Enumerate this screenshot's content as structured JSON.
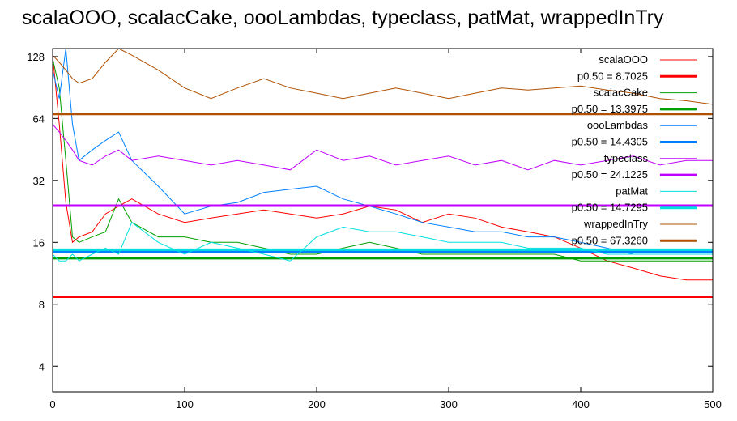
{
  "title": "scalaOOO, scalacCake, oooLambdas, typeclass, patMat, wrappedInTry",
  "chart_data": {
    "type": "line",
    "title": "scalaOOO, scalacCake, oooLambdas, typeclass, patMat, wrappedInTry",
    "xlabel": "",
    "ylabel": "",
    "xlim": [
      0,
      500
    ],
    "ylim": [
      3,
      140
    ],
    "yscale": "log2",
    "xticks": [
      0,
      100,
      200,
      300,
      400,
      500
    ],
    "yticks": [
      4,
      8,
      16,
      32,
      64,
      128
    ],
    "grid": false,
    "legend_position": "top-right",
    "series": [
      {
        "name": "scalaOOO",
        "color": "#ff0000",
        "x": [
          0,
          5,
          10,
          15,
          20,
          30,
          40,
          50,
          60,
          80,
          100,
          120,
          140,
          160,
          180,
          200,
          220,
          240,
          260,
          280,
          300,
          320,
          340,
          360,
          380,
          400,
          420,
          440,
          460,
          480,
          500
        ],
        "y": [
          130,
          60,
          25,
          16,
          17,
          18,
          22,
          24,
          26,
          22,
          20,
          21,
          22,
          23,
          22,
          21,
          22,
          24,
          23,
          20,
          22,
          21,
          19,
          18,
          17,
          15,
          13,
          12,
          11,
          10.5,
          10.5
        ]
      },
      {
        "name": "p0.50 = 8.7025",
        "color": "#ff0000",
        "x": [
          0,
          500
        ],
        "y": [
          8.7025,
          8.7025
        ]
      },
      {
        "name": "scalacCake",
        "color": "#00a000",
        "x": [
          0,
          5,
          10,
          15,
          20,
          30,
          40,
          50,
          60,
          80,
          100,
          120,
          140,
          160,
          180,
          200,
          220,
          240,
          260,
          280,
          300,
          320,
          340,
          360,
          380,
          400,
          420,
          440,
          460,
          480,
          500
        ],
        "y": [
          125,
          90,
          40,
          17,
          16,
          17,
          18,
          26,
          20,
          17,
          17,
          16,
          16,
          15,
          14,
          14,
          15,
          16,
          15,
          14,
          14,
          14,
          14,
          14,
          14,
          13,
          13,
          13,
          13,
          13,
          13
        ]
      },
      {
        "name": "p0.50 = 13.3975",
        "color": "#00a000",
        "x": [
          0,
          500
        ],
        "y": [
          13.3975,
          13.3975
        ]
      },
      {
        "name": "oooLambdas",
        "color": "#0080ff",
        "x": [
          0,
          5,
          10,
          15,
          20,
          30,
          40,
          50,
          60,
          80,
          100,
          120,
          140,
          160,
          180,
          200,
          220,
          240,
          260,
          280,
          300,
          320,
          340,
          360,
          380,
          400,
          420,
          440,
          460,
          480,
          500
        ],
        "y": [
          110,
          80,
          140,
          60,
          40,
          45,
          50,
          55,
          40,
          30,
          22,
          24,
          25,
          28,
          29,
          30,
          26,
          24,
          22,
          20,
          19,
          18,
          18,
          17,
          17,
          16,
          15,
          14,
          14,
          14,
          14
        ]
      },
      {
        "name": "p0.50 = 14.4305",
        "color": "#0080ff",
        "x": [
          0,
          500
        ],
        "y": [
          14.4305,
          14.4305
        ]
      },
      {
        "name": "typeclass",
        "color": "#c000ff",
        "x": [
          0,
          5,
          10,
          15,
          20,
          30,
          40,
          50,
          60,
          80,
          100,
          120,
          140,
          160,
          180,
          200,
          220,
          240,
          260,
          280,
          300,
          320,
          340,
          360,
          380,
          400,
          420,
          440,
          460,
          480,
          500
        ],
        "y": [
          60,
          55,
          50,
          45,
          40,
          38,
          42,
          45,
          40,
          42,
          40,
          38,
          40,
          38,
          36,
          45,
          40,
          42,
          38,
          40,
          42,
          38,
          40,
          36,
          40,
          38,
          40,
          42,
          38,
          40,
          40
        ]
      },
      {
        "name": "p0.50 = 24.1225",
        "color": "#c000ff",
        "x": [
          0,
          500
        ],
        "y": [
          24.1225,
          24.1225
        ]
      },
      {
        "name": "patMat",
        "color": "#00e0e0",
        "x": [
          0,
          5,
          10,
          15,
          20,
          30,
          40,
          50,
          60,
          80,
          100,
          120,
          140,
          160,
          180,
          200,
          220,
          240,
          260,
          280,
          300,
          320,
          340,
          360,
          380,
          400,
          420,
          440,
          460,
          480,
          500
        ],
        "y": [
          14,
          13,
          13,
          14,
          13,
          14,
          15,
          14,
          20,
          16,
          14,
          16,
          15,
          14,
          13,
          17,
          19,
          18,
          18,
          17,
          16,
          16,
          16,
          15,
          15,
          15,
          14,
          14,
          14,
          14,
          14
        ]
      },
      {
        "name": "p0.50 = 14.7295",
        "color": "#00e0e0",
        "x": [
          0,
          500
        ],
        "y": [
          14.7295,
          14.7295
        ]
      },
      {
        "name": "wrappedInTry",
        "color": "#b05000",
        "x": [
          0,
          5,
          10,
          15,
          20,
          30,
          40,
          50,
          60,
          80,
          100,
          120,
          140,
          160,
          180,
          200,
          220,
          240,
          260,
          280,
          300,
          320,
          340,
          360,
          380,
          400,
          420,
          440,
          460,
          480,
          500
        ],
        "y": [
          130,
          120,
          110,
          100,
          95,
          100,
          120,
          140,
          130,
          110,
          90,
          80,
          90,
          100,
          90,
          85,
          80,
          85,
          90,
          85,
          80,
          85,
          90,
          88,
          90,
          92,
          88,
          85,
          80,
          78,
          75
        ]
      },
      {
        "name": "p0.50 = 67.3260",
        "color": "#b05000",
        "x": [
          0,
          500
        ],
        "y": [
          67.326,
          67.326
        ]
      }
    ]
  }
}
